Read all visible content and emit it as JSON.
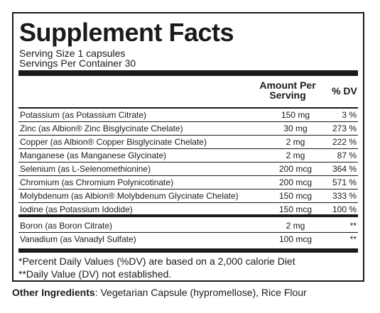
{
  "title": "Supplement Facts",
  "serving_size": "Serving Size 1 capsules",
  "servings_per_container": "Servings Per Container 30",
  "headers": {
    "amount_line1": "Amount Per",
    "amount_line2": "Serving",
    "dv": "% DV"
  },
  "rows": [
    {
      "name": "Potassium (as Potassium Citrate)",
      "amount": "150 mg",
      "dv": "3 %"
    },
    {
      "name": "Zinc (as Albion® Zinc Bisglycinate Chelate)",
      "amount": "30 mg",
      "dv": "273 %"
    },
    {
      "name": "Copper (as Albion® Copper Bisglycinate Chelate)",
      "amount": "2 mg",
      "dv": "222 %"
    },
    {
      "name": "Manganese (as Manganese Glycinate)",
      "amount": "2 mg",
      "dv": "87 %"
    },
    {
      "name": "Selenium (as L-Selenomethionine)",
      "amount": "200 mcg",
      "dv": "364 %"
    },
    {
      "name": "Chromium (as Chromium Polynicotinate)",
      "amount": "200 mcg",
      "dv": "571 %"
    },
    {
      "name": "Molybdenum (as Albion® Molybdenum Glycinate Chelate)",
      "amount": "150 mcg",
      "dv": "333 %"
    },
    {
      "name": "Iodine (as Potassium Idodide)",
      "amount": "150 mcg",
      "dv": "100 %"
    }
  ],
  "rows_no_dv": [
    {
      "name": "Boron (as Boron Citrate)",
      "amount": "2 mg",
      "dv": "**"
    },
    {
      "name": "Vanadium (as Vanadyl Sulfate)",
      "amount": "100 mcg",
      "dv": "**"
    }
  ],
  "footnotes": [
    "*Percent Daily Values (%DV) are based on a 2,000 calorie Diet",
    "**Daily Value (DV) not established."
  ],
  "other_ingredients": {
    "label": "Other Ingredients",
    "text": ": Vegetarian Capsule (hypromellose), Rice Flour"
  }
}
